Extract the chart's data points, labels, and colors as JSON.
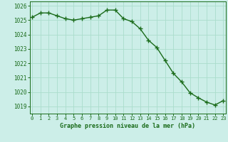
{
  "x": [
    0,
    1,
    2,
    3,
    4,
    5,
    6,
    7,
    8,
    9,
    10,
    11,
    12,
    13,
    14,
    15,
    16,
    17,
    18,
    19,
    20,
    21,
    22,
    23
  ],
  "y": [
    1025.2,
    1025.5,
    1025.5,
    1025.3,
    1025.1,
    1025.0,
    1025.1,
    1025.2,
    1025.3,
    1025.7,
    1025.7,
    1025.1,
    1024.9,
    1024.4,
    1023.6,
    1023.1,
    1022.2,
    1021.3,
    1020.7,
    1019.95,
    1019.6,
    1019.3,
    1019.1,
    1019.4
  ],
  "ylim": [
    1018.5,
    1026.3
  ],
  "yticks": [
    1019,
    1020,
    1021,
    1022,
    1023,
    1024,
    1025,
    1026
  ],
  "xlim": [
    -0.3,
    23.3
  ],
  "xticks": [
    0,
    1,
    2,
    3,
    4,
    5,
    6,
    7,
    8,
    9,
    10,
    11,
    12,
    13,
    14,
    15,
    16,
    17,
    18,
    19,
    20,
    21,
    22,
    23
  ],
  "xlabel": "Graphe pression niveau de la mer (hPa)",
  "line_color": "#1a6b1a",
  "marker": "+",
  "marker_size": 4,
  "bg_color": "#cceee8",
  "grid_color": "#aaddcc",
  "tick_label_color": "#1a6b1a",
  "xlabel_color": "#1a6b1a",
  "axis_color": "#1a6b1a",
  "linewidth": 1.0
}
